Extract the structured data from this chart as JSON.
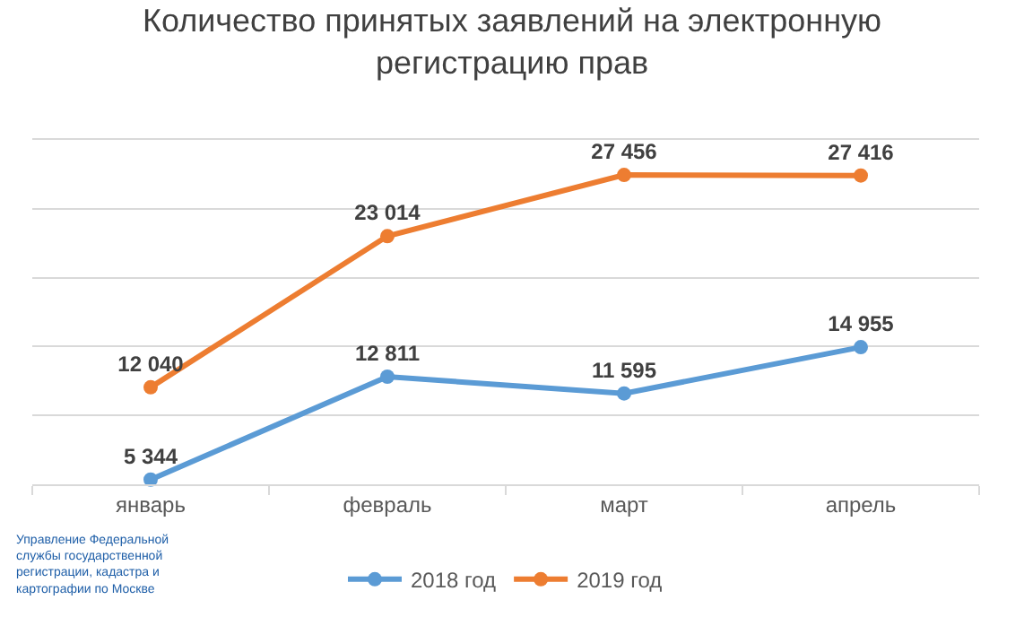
{
  "chart_data": {
    "type": "line",
    "title": "Количество принятых заявлений на электронную регистрацию прав",
    "categories": [
      "январь",
      "февраль",
      "март",
      "апрель"
    ],
    "series": [
      {
        "name": "2018 год",
        "color": "#5b9bd5",
        "values": [
          5344,
          12811,
          11595,
          14955
        ]
      },
      {
        "name": "2019 год",
        "color": "#ed7d31",
        "values": [
          12040,
          23014,
          27456,
          27416
        ]
      }
    ],
    "ylim": [
      5000,
      30000
    ],
    "yticks": [
      {
        "value": 5000,
        "label": null
      },
      {
        "value": 10000,
        "label": null
      },
      {
        "value": 15000,
        "label": null
      },
      {
        "value": 20000,
        "label": null
      },
      {
        "value": 25000,
        "label": null
      },
      {
        "value": 30000,
        "label": null
      }
    ],
    "tick_labels": "x",
    "grid": "y",
    "legend": "bottom",
    "marker": "circle",
    "line_style": "solid",
    "data_labels": true,
    "annotations": [
      "Управление Федеральной службы государственной регистрации, кадастра и картографии по Москве"
    ]
  }
}
